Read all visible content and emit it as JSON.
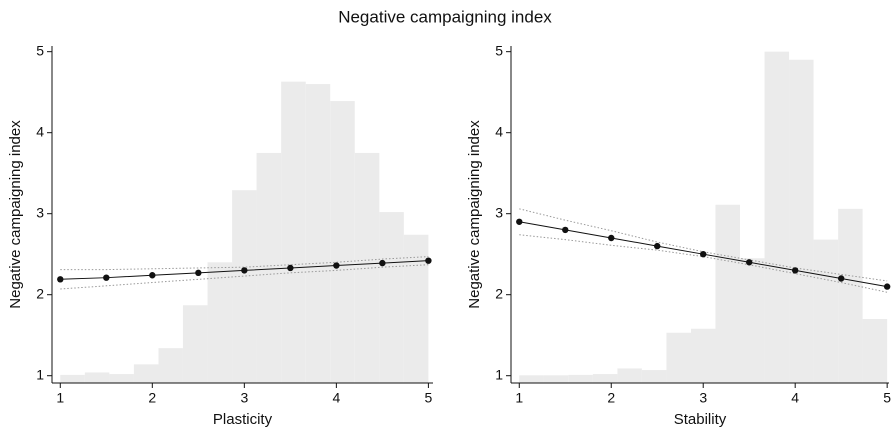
{
  "title": "Negative campaigning index",
  "chart_data": [
    {
      "type": "line",
      "xlabel": "Plasticity",
      "ylabel": "Negative campaigning index",
      "x": [
        1,
        1.5,
        2,
        2.5,
        3,
        3.5,
        4,
        4.5,
        5
      ],
      "values": [
        2.19,
        2.21,
        2.24,
        2.27,
        2.3,
        2.33,
        2.36,
        2.39,
        2.42
      ],
      "ci_lower": [
        2.07,
        2.11,
        2.15,
        2.19,
        2.23,
        2.27,
        2.3,
        2.34,
        2.37
      ],
      "ci_upper": [
        2.31,
        2.31,
        2.32,
        2.33,
        2.34,
        2.37,
        2.4,
        2.44,
        2.47
      ],
      "color": "#111111",
      "ci_color": "#999999",
      "histogram": {
        "color": "#ebebeb",
        "bins": [
          1,
          1.267,
          1.533,
          1.8,
          2.067,
          2.333,
          2.6,
          2.867,
          3.133,
          3.4,
          3.667,
          3.933,
          4.2,
          4.467,
          4.733,
          5
        ],
        "values": [
          1.01,
          1.04,
          1.02,
          1.14,
          1.34,
          1.87,
          2.4,
          3.29,
          3.75,
          4.63,
          4.6,
          4.39,
          3.75,
          3.02,
          2.74
        ]
      },
      "xlim": [
        0.91,
        5.05
      ],
      "ylim": [
        0.91,
        5.07
      ],
      "xticks": [
        1,
        2,
        3,
        4,
        5
      ],
      "yticks": [
        1,
        2,
        3,
        4,
        5
      ]
    },
    {
      "type": "line",
      "xlabel": "Stability",
      "ylabel": "Negative campaigning index",
      "x": [
        1,
        1.5,
        2,
        2.5,
        3,
        3.5,
        4,
        4.5,
        5
      ],
      "values": [
        2.9,
        2.8,
        2.7,
        2.6,
        2.5,
        2.4,
        2.3,
        2.2,
        2.1
      ],
      "ci_lower": [
        2.74,
        2.68,
        2.61,
        2.55,
        2.47,
        2.37,
        2.26,
        2.15,
        2.03
      ],
      "ci_upper": [
        3.06,
        2.92,
        2.79,
        2.65,
        2.53,
        2.43,
        2.33,
        2.25,
        2.17
      ],
      "color": "#111111",
      "ci_color": "#999999",
      "histogram": {
        "color": "#ebebeb",
        "bins": [
          1,
          1.267,
          1.533,
          1.8,
          2.067,
          2.333,
          2.6,
          2.867,
          3.133,
          3.4,
          3.667,
          3.933,
          4.2,
          4.467,
          4.733,
          5
        ],
        "values": [
          1.005,
          1.005,
          1.01,
          1.02,
          1.09,
          1.07,
          1.53,
          1.58,
          3.11,
          2.45,
          5.0,
          4.9,
          2.68,
          3.06,
          1.7
        ]
      },
      "xlim": [
        0.91,
        5.02
      ],
      "ylim": [
        0.91,
        5.07
      ],
      "xticks": [
        1,
        2,
        3,
        4,
        5
      ],
      "yticks": [
        1,
        2,
        3,
        4,
        5
      ]
    }
  ]
}
